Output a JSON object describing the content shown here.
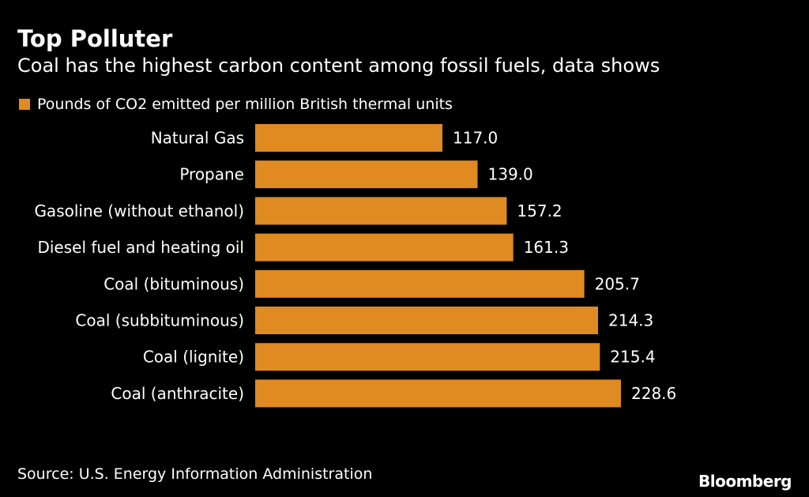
{
  "header": {
    "title": "Top Polluter",
    "subtitle": "Coal has the highest carbon content among fossil fuels, data shows"
  },
  "colors": {
    "background": "#000000",
    "bar": "#e08a22",
    "text": "#ffffff"
  },
  "chart_data": {
    "type": "bar",
    "orientation": "horizontal",
    "categories": [
      "Natural Gas",
      "Propane",
      "Gasoline (without ethanol)",
      "Diesel fuel and heating oil",
      "Coal (bituminous)",
      "Coal (subbituminous)",
      "Coal (lignite)",
      "Coal (anthracite)"
    ],
    "series": [
      {
        "name": "Pounds of CO2 emitted per million British thermal units",
        "values": [
          117.0,
          139.0,
          157.2,
          161.3,
          205.7,
          214.3,
          215.4,
          228.6
        ],
        "labels": [
          "117.0",
          "139.0",
          "157.2",
          "161.3",
          "205.7",
          "214.3",
          "215.4",
          "228.6"
        ]
      }
    ],
    "xlim": [
      0,
      228.6
    ],
    "grid": false,
    "legend_position": "top-left",
    "data_labels": true
  },
  "footer": {
    "source": "Source: U.S. Energy Information Administration",
    "brand": "Bloomberg"
  }
}
